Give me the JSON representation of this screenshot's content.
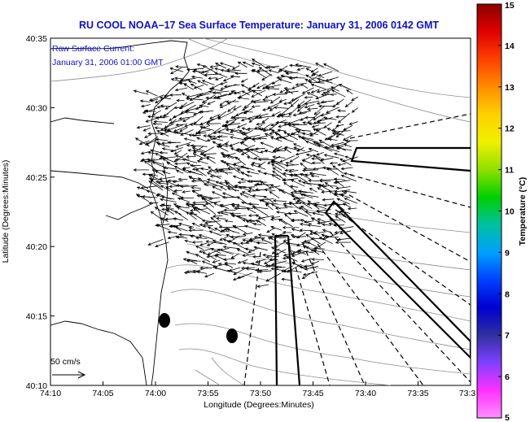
{
  "title": "RU COOL  NOAA–17  Sea Surface Temperature:  January 31, 2006 0142 GMT",
  "current_label_line1": "Raw Surface Current:",
  "current_label_line2": "January 31, 2006 01:00 GMT",
  "x_axis_label": "Longitude (Degrees:Minutes)",
  "y_axis_label": "Latitude (Degrees:Minutes)",
  "x_ticks": [
    "74:10",
    "74:05",
    "74:00",
    "73:55",
    "73:50",
    "73:45",
    "73:40",
    "73:35",
    "73:3"
  ],
  "y_ticks": [
    "40:35",
    "40:30",
    "40:25",
    "40:20",
    "40:15",
    "40:10"
  ],
  "colorbar": {
    "label": "Temperature (°C)",
    "ticks": [
      "15",
      "14",
      "13",
      "12",
      "11",
      "10",
      "9",
      "8",
      "7",
      "6",
      "5"
    ],
    "colors": [
      "#8b0000",
      "#e00000",
      "#ff4000",
      "#ff8c00",
      "#ffd000",
      "#f0f000",
      "#90e000",
      "#00d000",
      "#00c0a0",
      "#00a0ff",
      "#0040ff",
      "#0000d0",
      "#3030a0",
      "#8040ff",
      "#ff30ff",
      "#ff90ff"
    ]
  },
  "scale_label": "50 cm/s",
  "chart_data": {
    "type": "map",
    "title": "RU COOL  NOAA–17  Sea Surface Temperature:  January 31, 2006 0142 GMT",
    "xlabel": "Longitude (Degrees:Minutes)",
    "ylabel": "Latitude (Degrees:Minutes)",
    "xlim": [
      "74:10",
      "73:30"
    ],
    "ylim": [
      "40:10",
      "40:35"
    ],
    "colorbar_range": [
      5,
      15
    ],
    "markers": [
      {
        "lon": "73:59",
        "lat": "40:14.5",
        "shape": "ellipse",
        "color": "#000000"
      },
      {
        "lon": "73:52.5",
        "lat": "40:13.5",
        "shape": "ellipse",
        "color": "#000000"
      }
    ]
  }
}
